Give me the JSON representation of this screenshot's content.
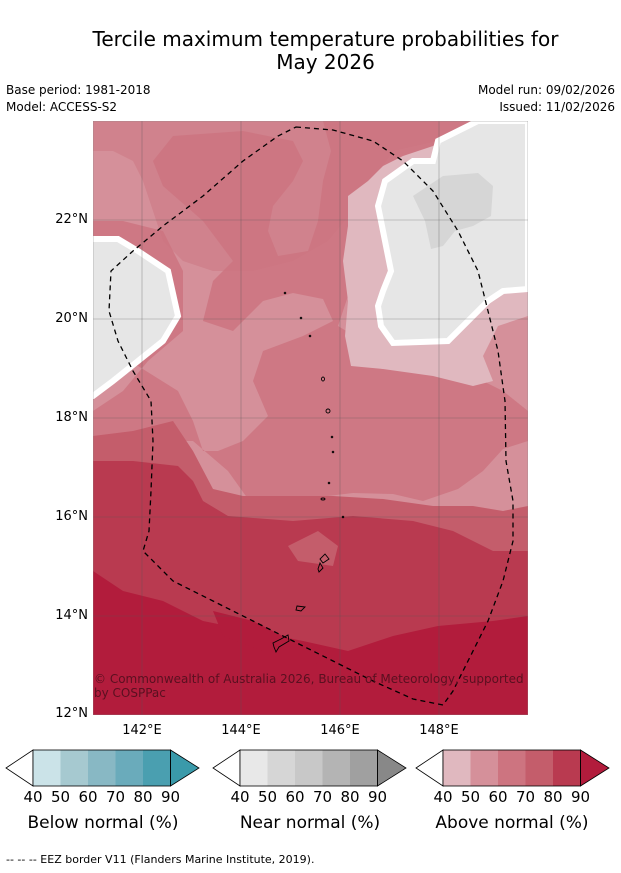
{
  "title_line1": "Tercile maximum temperature probabilities for",
  "title_line2": "May 2026",
  "meta": {
    "base_period": "Base period: 1981-2018",
    "model": "Model: ACCESS-S2",
    "model_run": "Model run: 09/02/2026",
    "issued": "Issued: 11/02/2026"
  },
  "axes": {
    "lat_labels": [
      "22°N",
      "20°N",
      "18°N",
      "16°N",
      "14°N",
      "12°N"
    ],
    "lon_labels": [
      "142°E",
      "144°E",
      "146°E",
      "148°E"
    ]
  },
  "copyright": "© Commonwealth of Australia 2026, Bureau of Meteorology, supported by COSPPac",
  "colorbars": [
    {
      "title": "Below normal (%)",
      "ticks": [
        "40",
        "50",
        "60",
        "70",
        "80",
        "90"
      ],
      "colors": [
        "#cbe3e8",
        "#a6c9d0",
        "#88b8c4",
        "#6aabbb",
        "#4a9fb0",
        "#3a9aaa"
      ]
    },
    {
      "title": "Near normal (%)",
      "ticks": [
        "40",
        "50",
        "60",
        "70",
        "80",
        "90"
      ],
      "colors": [
        "#e8e8e8",
        "#d6d6d6",
        "#c8c8c8",
        "#b4b4b4",
        "#a0a0a0",
        "#888888"
      ]
    },
    {
      "title": "Above normal (%)",
      "ticks": [
        "40",
        "50",
        "60",
        "70",
        "80",
        "90"
      ],
      "colors": [
        "#e0b8bf",
        "#d5909a",
        "#cd7480",
        "#c45d6b",
        "#b93a50",
        "#b21c3c"
      ]
    }
  ],
  "footer": "--  --  -- EEZ border V11 (Flanders Marine Institute, 2019)."
}
